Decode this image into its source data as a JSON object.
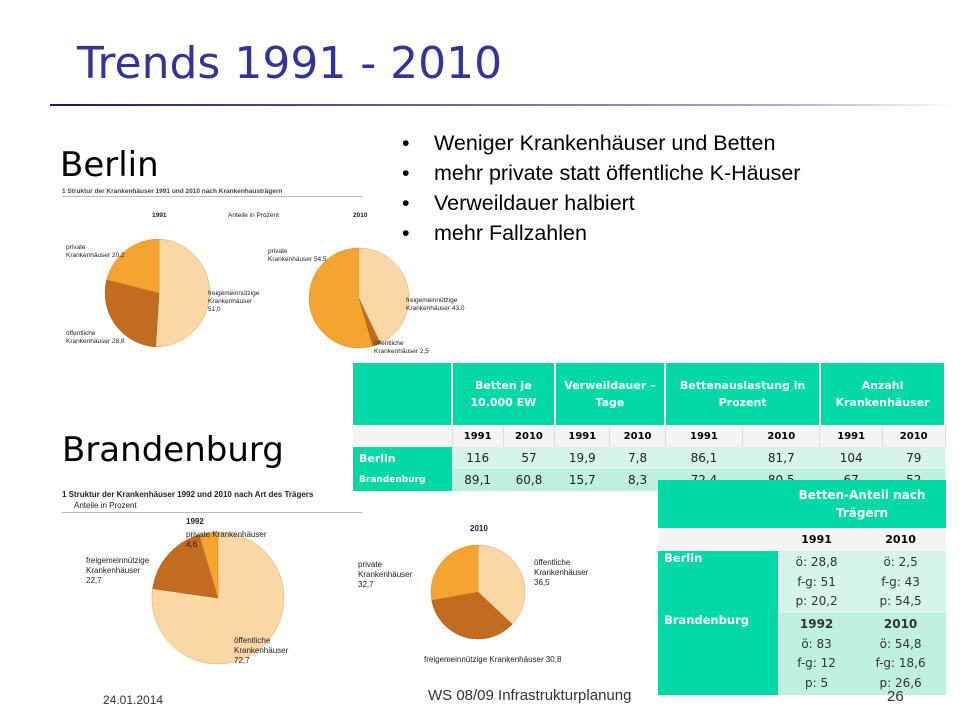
{
  "slide": {
    "title": "Trends 1991 - 2010",
    "berlin_heading": "Berlin",
    "brandenburg_heading": "Brandenburg",
    "bullets": [
      "Weniger Krankenhäuser und Betten",
      "mehr private statt öffentliche K-Häuser",
      "Verweildauer halbiert",
      "mehr Fallzahlen"
    ],
    "accent_color": "#333399",
    "table_header_color": "#00d9a6"
  },
  "berlin_figure": {
    "caption": "1  Struktur der Krankenhäuser 1991 und 2010 nach Krankenhausträgern",
    "year_left": "1991",
    "share_label": "Anteile in Prozent",
    "year_right": "2010",
    "pie_1991": {
      "label_private": [
        "private",
        "Krankenhäuser 20,2"
      ],
      "label_freige": [
        "freigemeinnützige",
        "Krankenhäuser",
        "51,0"
      ],
      "label_oeff": [
        "öffentliche",
        "Krankenhäuser 28,8"
      ]
    },
    "pie_2010": {
      "label_private": [
        "private",
        "Krankenhäuser 54,5"
      ],
      "label_freige": [
        "freigemeinnützige",
        "Krankenhäuser 43,0"
      ],
      "label_oeff": [
        "öffentliche",
        "Krankenhäuser 2,5"
      ]
    }
  },
  "brandenburg_figure": {
    "caption": "1  Struktur der Krankenhäuser 1992 und 2010 nach Art des Trägers",
    "share_label": "Anteile in Prozent",
    "pie_1992": {
      "year": "1992",
      "label_private": [
        "private Krankenhäuser",
        "4,6"
      ],
      "label_freige": [
        "freigemeinnützige",
        "Krankenhäuser",
        "22,7"
      ],
      "label_oeff": [
        "öffentliche",
        "Krankenhäuser",
        "72,7"
      ]
    },
    "pie_2010": {
      "year": "2010",
      "label_private": [
        "private",
        "Krankenhäuser",
        "32,7"
      ],
      "label_freige": [
        "freigemeinnützige Krankenhäuser 30,8"
      ],
      "label_oeff": [
        "öffentliche",
        "Krankenhäuser",
        "36,5"
      ]
    }
  },
  "table_main": {
    "headers": [
      "Betten je 10.000 EW",
      "Verweildauer – Tage",
      "Bettenauslastung in Prozent",
      "Anzahl Krankenhäuser"
    ],
    "years": [
      "1991",
      "2010",
      "1991",
      "2010",
      "1991",
      "2010",
      "1991",
      "2010"
    ],
    "rows": [
      {
        "name": "Berlin",
        "values": [
          "116",
          "57",
          "19,9",
          "7,8",
          "86,1",
          "81,7",
          "104",
          "79"
        ]
      },
      {
        "name": "Brandenburg",
        "values": [
          "89,1",
          "60,8",
          "15,7",
          "8,3",
          "72,4",
          "80,5",
          "67",
          "52"
        ]
      }
    ]
  },
  "table_traeger": {
    "header": "Betten-Anteil nach Trägern",
    "years": [
      "1991",
      "2010"
    ],
    "rows": [
      {
        "name": "Berlin",
        "col1": [
          "ö: 28,8",
          "f-g: 51",
          "p: 20,2"
        ],
        "col2": [
          "ö: 2,5",
          "f-g: 43",
          "p: 54,5"
        ]
      },
      {
        "name": "Brandenburg",
        "col1": [
          "1992",
          "ö: 83",
          "f-g: 12",
          "p: 5"
        ],
        "col2": [
          "2010",
          "ö: 54,8",
          "f-g: 18,6",
          "p: 26,6"
        ]
      }
    ]
  },
  "footer": {
    "date": "24.01.2014",
    "course": "WS 08/09 Infrastrukturplanung",
    "page": "26"
  }
}
